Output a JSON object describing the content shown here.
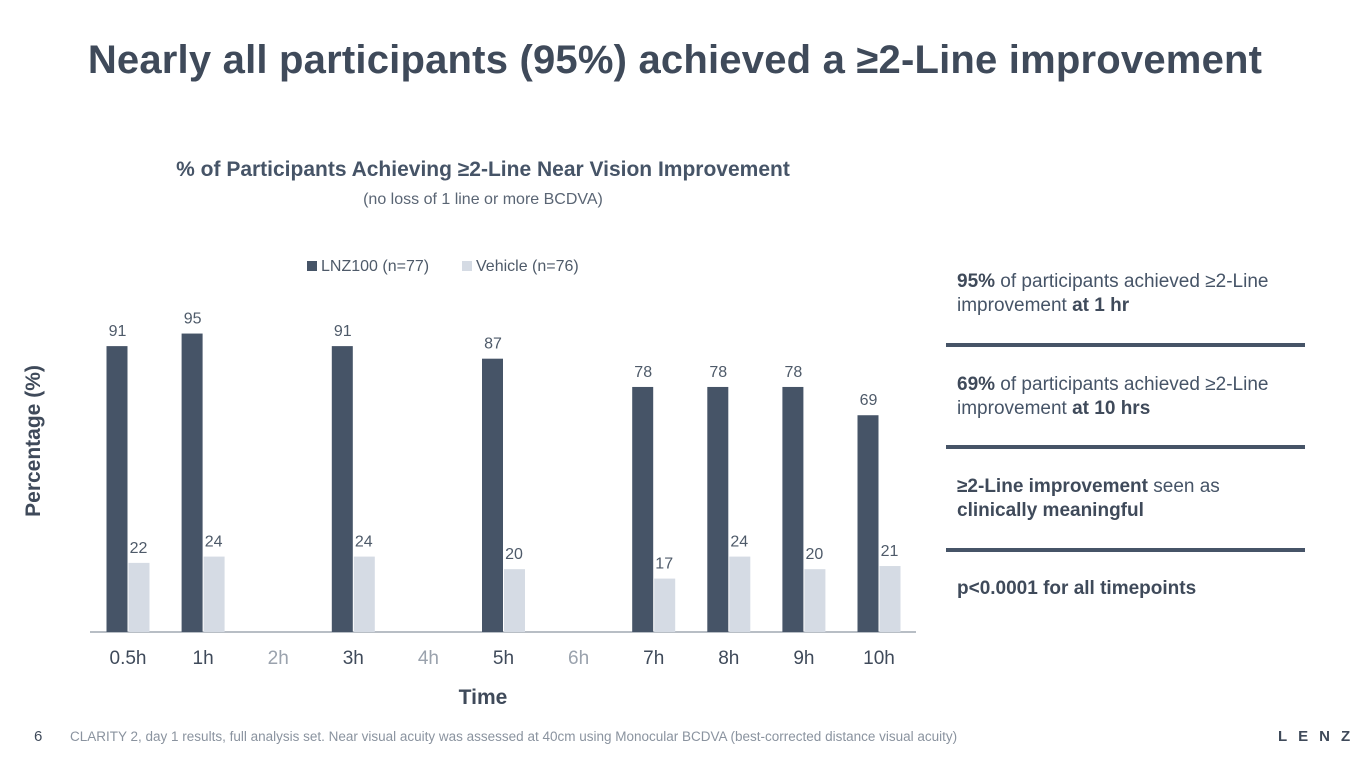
{
  "slide": {
    "title": "Nearly all participants (95%) achieved a ≥2-Line improvement",
    "page_number": "6",
    "footnote": "CLARITY 2, day 1 results, full analysis set. Near visual acuity was assessed at 40cm using Monocular BCDVA (best-corrected distance visual acuity)",
    "logo": "LENZ"
  },
  "chart_data": {
    "type": "bar",
    "title": "% of Participants Achieving ≥2-Line Near Vision Improvement",
    "subtitle": "(no loss of 1 line or more BCDVA)",
    "xlabel": "Time",
    "ylabel": "Percentage (%)",
    "ylim": [
      0,
      100
    ],
    "grid": false,
    "legend": "top-center",
    "categories": [
      "0.5h",
      "1h",
      "2h",
      "3h",
      "4h",
      "5h",
      "6h",
      "7h",
      "8h",
      "9h",
      "10h"
    ],
    "inactive_categories": [
      "2h",
      "4h",
      "6h"
    ],
    "series": [
      {
        "name": "LNZ100 (n=77)",
        "color": "#465467",
        "values": [
          91,
          95,
          null,
          91,
          null,
          87,
          null,
          78,
          78,
          78,
          69
        ]
      },
      {
        "name": "Vehicle (n=76)",
        "color": "#d5dbe4",
        "values": [
          22,
          24,
          null,
          24,
          null,
          20,
          null,
          17,
          24,
          20,
          21
        ]
      }
    ]
  },
  "panel": {
    "item1": {
      "strong1": "95%",
      "text1": " of participants achieved ≥2-Line improvement ",
      "strong2": "at 1 hr"
    },
    "item2": {
      "strong1": "69%",
      "text1": " of participants achieved ≥2-Line improvement ",
      "strong2": "at 10 hrs"
    },
    "item3": {
      "strong1": "≥2-Line improvement",
      "text1": " seen as ",
      "strong2": "clinically meaningful"
    },
    "item4": {
      "strong1": "p<0.0001 for all timepoints"
    }
  },
  "colors": {
    "dark": "#465467",
    "light": "#d5dbe4",
    "muted_tick": "#9aa2ad"
  }
}
